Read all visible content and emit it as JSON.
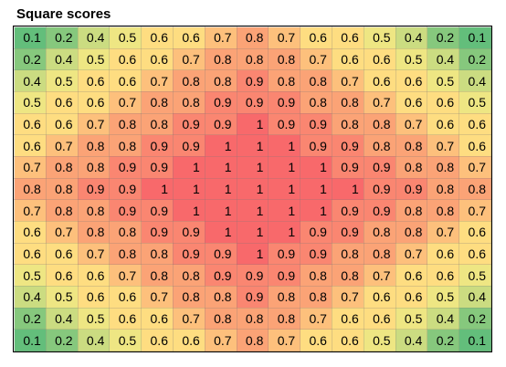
{
  "title": "Square scores",
  "scale_colors": {
    "low": "#63be7b",
    "mid": "#ffeb84",
    "high": "#f8696b"
  },
  "grid": [
    [
      "0.1",
      "0.2",
      "0.4",
      "0.5",
      "0.6",
      "0.6",
      "0.7",
      "0.8",
      "0.7",
      "0.6",
      "0.6",
      "0.5",
      "0.4",
      "0.2",
      "0.1"
    ],
    [
      "0.2",
      "0.4",
      "0.5",
      "0.6",
      "0.6",
      "0.7",
      "0.8",
      "0.8",
      "0.8",
      "0.7",
      "0.6",
      "0.6",
      "0.5",
      "0.4",
      "0.2"
    ],
    [
      "0.4",
      "0.5",
      "0.6",
      "0.6",
      "0.7",
      "0.8",
      "0.8",
      "0.9",
      "0.8",
      "0.8",
      "0.7",
      "0.6",
      "0.6",
      "0.5",
      "0.4"
    ],
    [
      "0.5",
      "0.6",
      "0.6",
      "0.7",
      "0.8",
      "0.8",
      "0.9",
      "0.9",
      "0.9",
      "0.8",
      "0.8",
      "0.7",
      "0.6",
      "0.6",
      "0.5"
    ],
    [
      "0.6",
      "0.6",
      "0.7",
      "0.8",
      "0.8",
      "0.9",
      "0.9",
      "1",
      "0.9",
      "0.9",
      "0.8",
      "0.8",
      "0.7",
      "0.6",
      "0.6"
    ],
    [
      "0.6",
      "0.7",
      "0.8",
      "0.8",
      "0.9",
      "0.9",
      "1",
      "1",
      "1",
      "0.9",
      "0.9",
      "0.8",
      "0.8",
      "0.7",
      "0.6"
    ],
    [
      "0.7",
      "0.8",
      "0.8",
      "0.9",
      "0.9",
      "1",
      "1",
      "1",
      "1",
      "1",
      "0.9",
      "0.9",
      "0.8",
      "0.8",
      "0.7"
    ],
    [
      "0.8",
      "0.8",
      "0.9",
      "0.9",
      "1",
      "1",
      "1",
      "1",
      "1",
      "1",
      "1",
      "0.9",
      "0.9",
      "0.8",
      "0.8"
    ],
    [
      "0.7",
      "0.8",
      "0.8",
      "0.9",
      "0.9",
      "1",
      "1",
      "1",
      "1",
      "1",
      "0.9",
      "0.9",
      "0.8",
      "0.8",
      "0.7"
    ],
    [
      "0.6",
      "0.7",
      "0.8",
      "0.8",
      "0.9",
      "0.9",
      "1",
      "1",
      "1",
      "0.9",
      "0.9",
      "0.8",
      "0.8",
      "0.7",
      "0.6"
    ],
    [
      "0.6",
      "0.6",
      "0.7",
      "0.8",
      "0.8",
      "0.9",
      "0.9",
      "1",
      "0.9",
      "0.9",
      "0.8",
      "0.8",
      "0.7",
      "0.6",
      "0.6"
    ],
    [
      "0.5",
      "0.6",
      "0.6",
      "0.7",
      "0.8",
      "0.8",
      "0.9",
      "0.9",
      "0.9",
      "0.8",
      "0.8",
      "0.7",
      "0.6",
      "0.6",
      "0.5"
    ],
    [
      "0.4",
      "0.5",
      "0.6",
      "0.6",
      "0.7",
      "0.8",
      "0.8",
      "0.9",
      "0.8",
      "0.8",
      "0.7",
      "0.6",
      "0.6",
      "0.5",
      "0.4"
    ],
    [
      "0.2",
      "0.4",
      "0.5",
      "0.6",
      "0.6",
      "0.7",
      "0.8",
      "0.8",
      "0.8",
      "0.7",
      "0.6",
      "0.6",
      "0.5",
      "0.4",
      "0.2"
    ],
    [
      "0.1",
      "0.2",
      "0.4",
      "0.5",
      "0.6",
      "0.6",
      "0.7",
      "0.8",
      "0.7",
      "0.6",
      "0.6",
      "0.5",
      "0.4",
      "0.2",
      "0.1"
    ]
  ]
}
